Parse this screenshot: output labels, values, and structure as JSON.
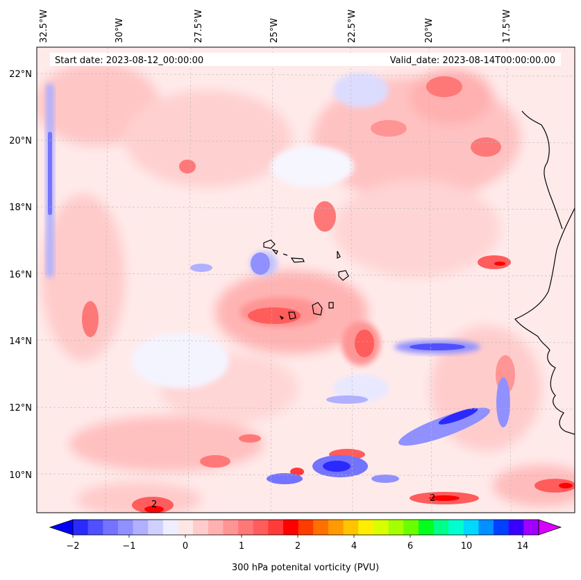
{
  "map": {
    "start_date_label": "Start date: 2023-08-12_00:00:00",
    "valid_date_label": "Valid_date: 2023-08-14T00:00:00.00",
    "lon_ticks": [
      "32.5°W",
      "30°W",
      "27.5°W",
      "25°W",
      "22.5°W",
      "20°W",
      "17.5°W"
    ],
    "lat_ticks": [
      "22°N",
      "20°N",
      "18°N",
      "16°N",
      "14°N",
      "12°N",
      "10°N"
    ],
    "contour_labels": [
      "2",
      "2"
    ]
  },
  "colorbar": {
    "title": "300 hPa potenital vorticity (PVU)",
    "tick_labels": [
      "−2",
      "−1",
      "0",
      "1",
      "2",
      "4",
      "6",
      "10",
      "14"
    ],
    "colors": [
      "#0000ff",
      "#2a2aff",
      "#5050ff",
      "#7373ff",
      "#9090ff",
      "#b0b0ff",
      "#d0d0ff",
      "#eeeeff",
      "#ffe6e6",
      "#ffcccc",
      "#ffb0b0",
      "#ff9494",
      "#ff7878",
      "#ff5c5c",
      "#ff3a3a",
      "#ff0000",
      "#ff3c00",
      "#ff7000",
      "#ff9a00",
      "#ffc400",
      "#ffee00",
      "#d8ff00",
      "#a6ff00",
      "#6aff00",
      "#00ff1e",
      "#00ff88",
      "#00ffd0",
      "#00d8ff",
      "#0090ff",
      "#0040ff",
      "#3a00ff",
      "#a000ff",
      "#d800ff"
    ]
  }
}
